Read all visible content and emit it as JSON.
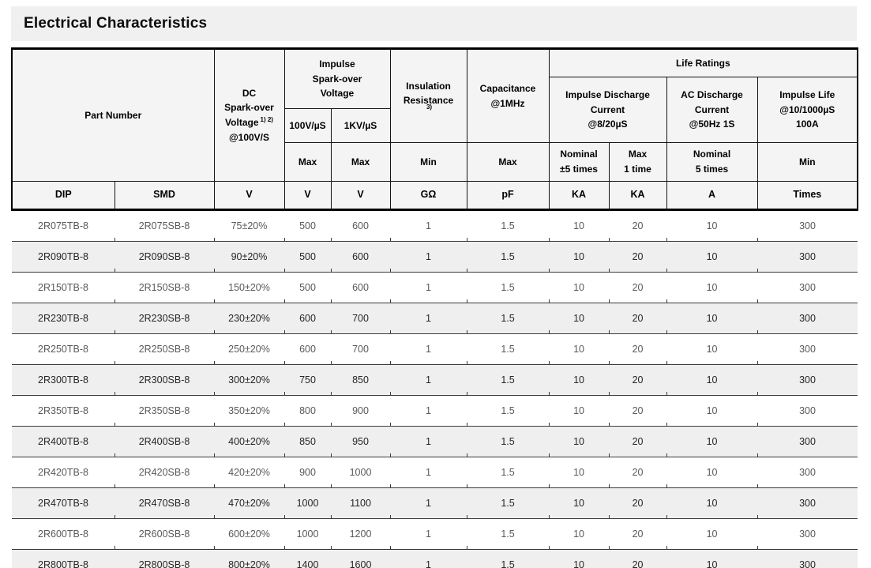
{
  "title": "Electrical Characteristics",
  "table": {
    "header": {
      "part_number": "Part Number",
      "dc": {
        "l1": "DC",
        "l2": "Spark-over",
        "l3": "Voltage",
        "sup": "1) 2)",
        "l4": "@100V/S"
      },
      "impulse_spark": "Impulse\nSpark-over\nVoltage",
      "v100": "100V/µS",
      "kv1": "1KV/µS",
      "insulation": {
        "l1": "Insulation",
        "l2": "Resistance",
        "sup": "3)"
      },
      "capacitance": "Capacitance\n@1MHz",
      "life_ratings": "Life Ratings",
      "impulse_discharge": "Impulse Discharge\nCurrent\n@8/20µS",
      "ac_discharge": "AC Discharge\nCurrent\n@50Hz 1S",
      "impulse_life": "Impulse Life\n@10/1000µS\n100A",
      "max_100v": "Max",
      "max_1kv": "Max",
      "min_insulation": "Min",
      "max_capacitance": "Max",
      "nominal_pm5": "Nominal\n±5 times",
      "max_1time": "Max\n1 time",
      "nominal_5times": "Nominal\n5 times",
      "min_impulse_life": "Min"
    },
    "units": [
      "DIP",
      "SMD",
      "V",
      "V",
      "V",
      "GΩ",
      "pF",
      "KA",
      "KA",
      "A",
      "Times"
    ],
    "rows": [
      [
        "2R075TB-8",
        "2R075SB-8",
        "75±20%",
        "500",
        "600",
        "1",
        "1.5",
        "10",
        "20",
        "10",
        "300"
      ],
      [
        "2R090TB-8",
        "2R090SB-8",
        "90±20%",
        "500",
        "600",
        "1",
        "1.5",
        "10",
        "20",
        "10",
        "300"
      ],
      [
        "2R150TB-8",
        "2R150SB-8",
        "150±20%",
        "500",
        "600",
        "1",
        "1.5",
        "10",
        "20",
        "10",
        "300"
      ],
      [
        "2R230TB-8",
        "2R230SB-8",
        "230±20%",
        "600",
        "700",
        "1",
        "1.5",
        "10",
        "20",
        "10",
        "300"
      ],
      [
        "2R250TB-8",
        "2R250SB-8",
        "250±20%",
        "600",
        "700",
        "1",
        "1.5",
        "10",
        "20",
        "10",
        "300"
      ],
      [
        "2R300TB-8",
        "2R300SB-8",
        "300±20%",
        "750",
        "850",
        "1",
        "1.5",
        "10",
        "20",
        "10",
        "300"
      ],
      [
        "2R350TB-8",
        "2R350SB-8",
        "350±20%",
        "800",
        "900",
        "1",
        "1.5",
        "10",
        "20",
        "10",
        "300"
      ],
      [
        "2R400TB-8",
        "2R400SB-8",
        "400±20%",
        "850",
        "950",
        "1",
        "1.5",
        "10",
        "20",
        "10",
        "300"
      ],
      [
        "2R420TB-8",
        "2R420SB-8",
        "420±20%",
        "900",
        "1000",
        "1",
        "1.5",
        "10",
        "20",
        "10",
        "300"
      ],
      [
        "2R470TB-8",
        "2R470SB-8",
        "470±20%",
        "1000",
        "1100",
        "1",
        "1.5",
        "10",
        "20",
        "10",
        "300"
      ],
      [
        "2R600TB-8",
        "2R600SB-8",
        "600±20%",
        "1000",
        "1200",
        "1",
        "1.5",
        "10",
        "20",
        "10",
        "300"
      ],
      [
        "2R800TB-8",
        "2R800SB-8",
        "800±20%",
        "1400",
        "1600",
        "1",
        "1.5",
        "10",
        "20",
        "10",
        "300"
      ]
    ]
  }
}
